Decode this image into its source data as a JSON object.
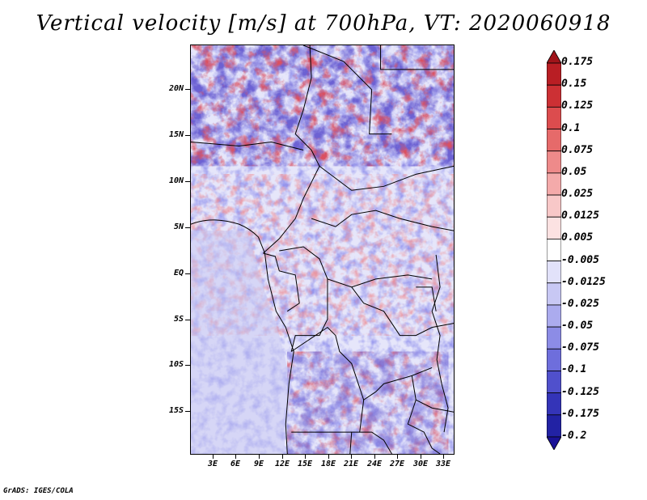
{
  "title": "Vertical velocity [m/s] at 700hPa, VT: 2020060918",
  "credit": "GrADS: IGES/COLA",
  "map": {
    "lat_labels": [
      "20N",
      "15N",
      "10N",
      "5N",
      "EQ",
      "5S",
      "10S",
      "15S"
    ],
    "lon_labels": [
      "3E",
      "6E",
      "9E",
      "12E",
      "15E",
      "18E",
      "21E",
      "24E",
      "27E",
      "30E",
      "33E"
    ]
  },
  "colorbar": {
    "labels": [
      "0.175",
      "0.15",
      "0.125",
      "0.1",
      "0.075",
      "0.05",
      "0.025",
      "0.0125",
      "0.005",
      "-0.005",
      "-0.0125",
      "-0.025",
      "-0.05",
      "-0.075",
      "-0.1",
      "-0.125",
      "-0.175",
      "-0.2"
    ],
    "colors": [
      "#a0141a",
      "#b91e24",
      "#cc3034",
      "#dc4c4e",
      "#e66a6a",
      "#ee8a8a",
      "#f4aaaa",
      "#f8c8c8",
      "#fce2e2",
      "#ffffff",
      "#e2e2fa",
      "#c8c8f4",
      "#ababee",
      "#8c8ce6",
      "#6e6edc",
      "#5050cc",
      "#3434b8",
      "#2222a4",
      "#1a1296"
    ]
  }
}
